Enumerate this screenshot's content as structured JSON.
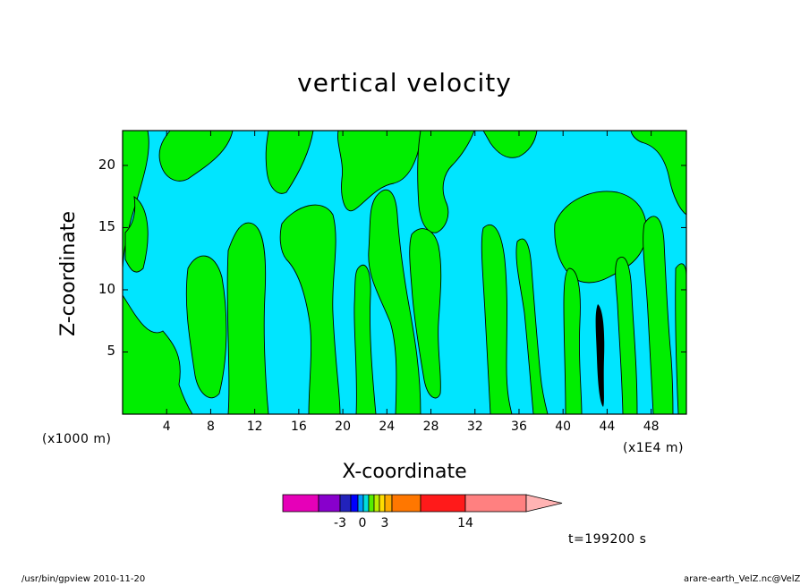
{
  "chart_data": {
    "type": "heatmap",
    "title": "vertical velocity",
    "xlabel": "X-coordinate",
    "ylabel": "Z-coordinate",
    "x_unit_left": "(x1000 m)",
    "x_unit_right": "(x1E4 m)",
    "xticks": [
      "4",
      "8",
      "12",
      "16",
      "20",
      "24",
      "28",
      "32",
      "36",
      "40",
      "44",
      "48"
    ],
    "xtick_values": [
      4,
      8,
      12,
      16,
      20,
      24,
      28,
      32,
      36,
      40,
      44,
      48
    ],
    "xlim": [
      0,
      51.2
    ],
    "yticks": [
      "5",
      "10",
      "15",
      "20"
    ],
    "ytick_values": [
      5,
      10,
      15,
      20
    ],
    "ylim": [
      0,
      22.8
    ],
    "field_colors": {
      "negative": "#00e5ff",
      "positive": "#00ee00",
      "strong": "#000000"
    },
    "colorbar": {
      "colors": [
        "#e600b8",
        "#8800cc",
        "#2222bb",
        "#0000ff",
        "#0099ff",
        "#00dddd",
        "#55ee00",
        "#bbee00",
        "#ffdd00",
        "#ffaa00",
        "#ff7700",
        "#ff1a1a",
        "#ff8080",
        "#ffb3b3"
      ],
      "ticklabels": [
        "-3",
        "0",
        "3",
        "14"
      ]
    },
    "time_label": "t=199200 s"
  },
  "footer": {
    "left": "/usr/bin/gpview  2010-11-20",
    "right": "arare-earth_VelZ.nc@VelZ"
  }
}
